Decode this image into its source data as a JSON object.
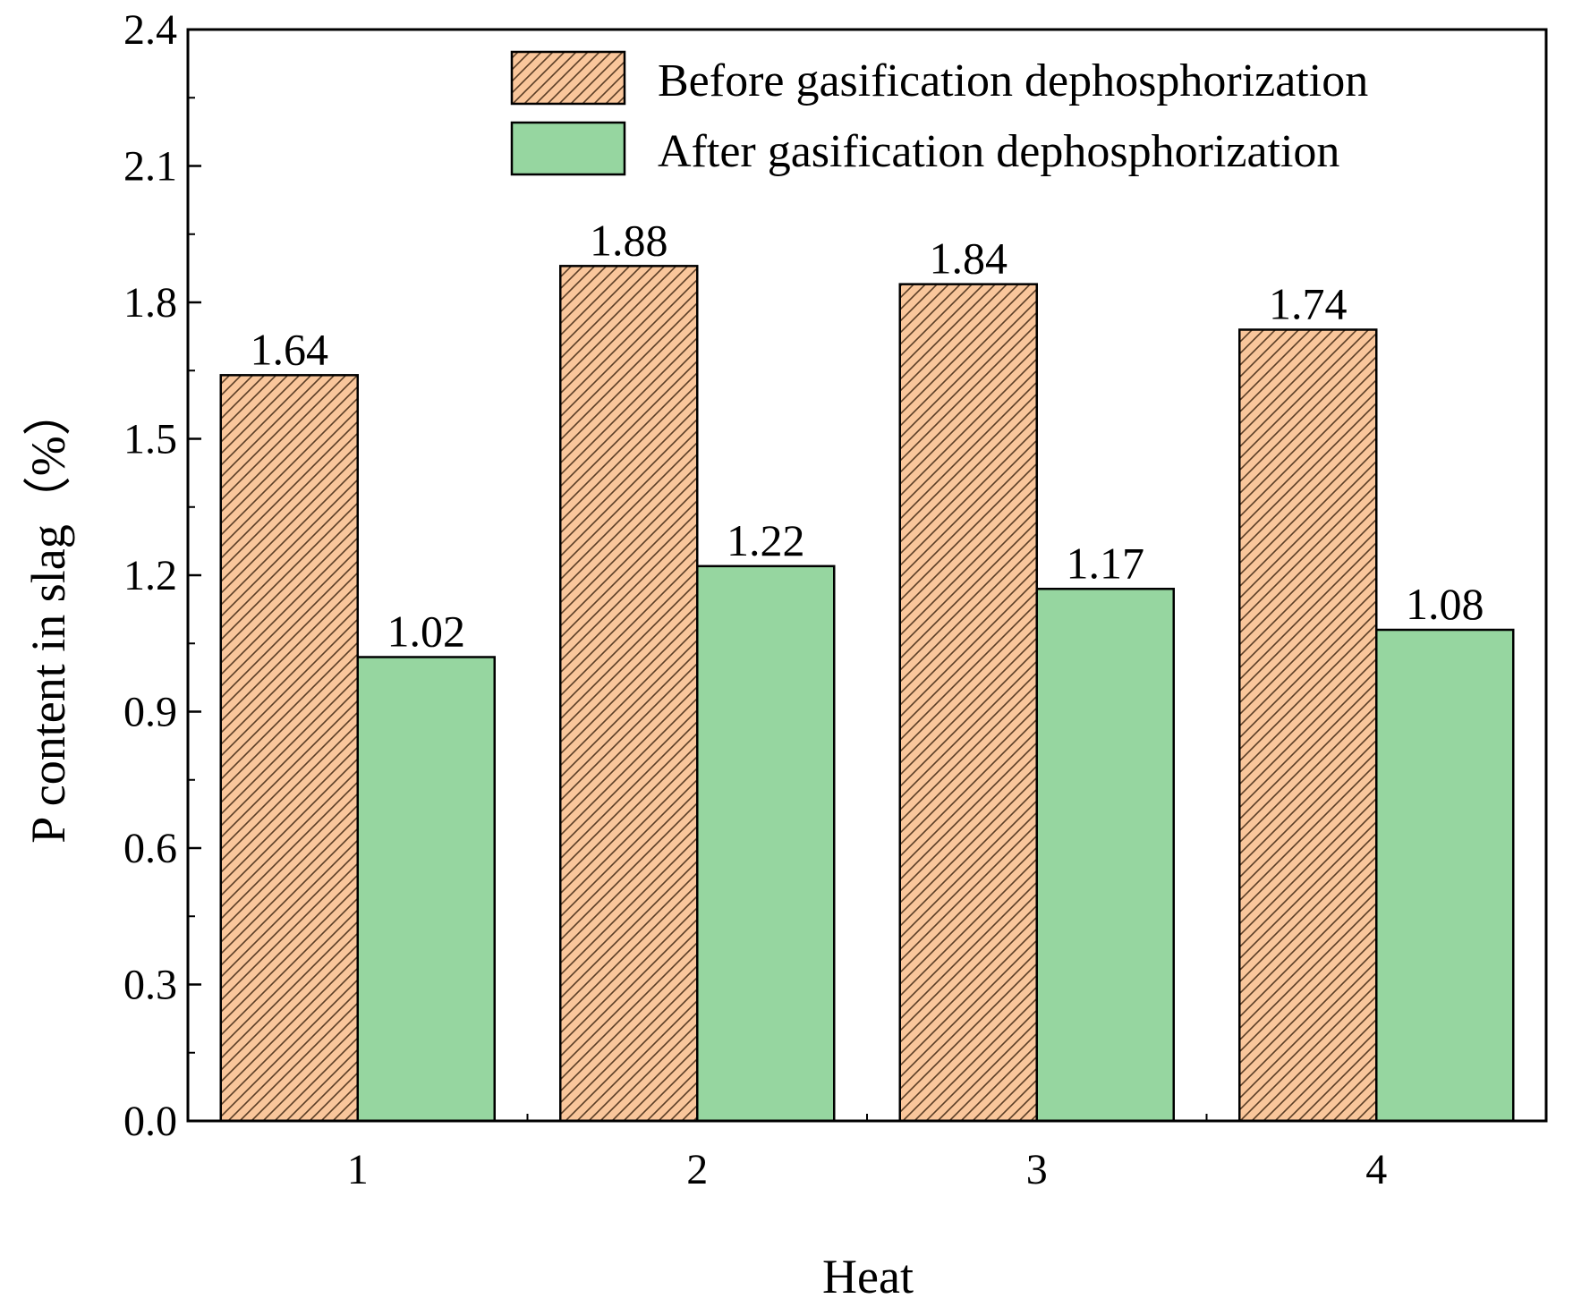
{
  "chart_data": {
    "type": "bar",
    "title": "",
    "xlabel": "Heat",
    "ylabel": "P content in slag（%）",
    "categories": [
      "1",
      "2",
      "3",
      "4"
    ],
    "series": [
      {
        "name": "Before gasification dephosphorization",
        "values": [
          1.64,
          1.88,
          1.84,
          1.74
        ],
        "value_labels": [
          "1.64",
          "1.88",
          "1.84",
          "1.74"
        ],
        "color": "#f9c69b",
        "pattern": "diagonal-hatch",
        "pattern_color": "#5a3d25"
      },
      {
        "name": "After gasification dephosphorization",
        "values": [
          1.02,
          1.22,
          1.17,
          1.08
        ],
        "value_labels": [
          "1.02",
          "1.22",
          "1.17",
          "1.08"
        ],
        "color": "#96d6a0",
        "pattern": "solid"
      }
    ],
    "ylim": [
      0,
      2.4
    ],
    "yticks": [
      "0.0",
      "0.3",
      "0.6",
      "0.9",
      "1.2",
      "1.5",
      "1.8",
      "2.1",
      "2.4"
    ],
    "grid": false,
    "legend": "top-right"
  }
}
